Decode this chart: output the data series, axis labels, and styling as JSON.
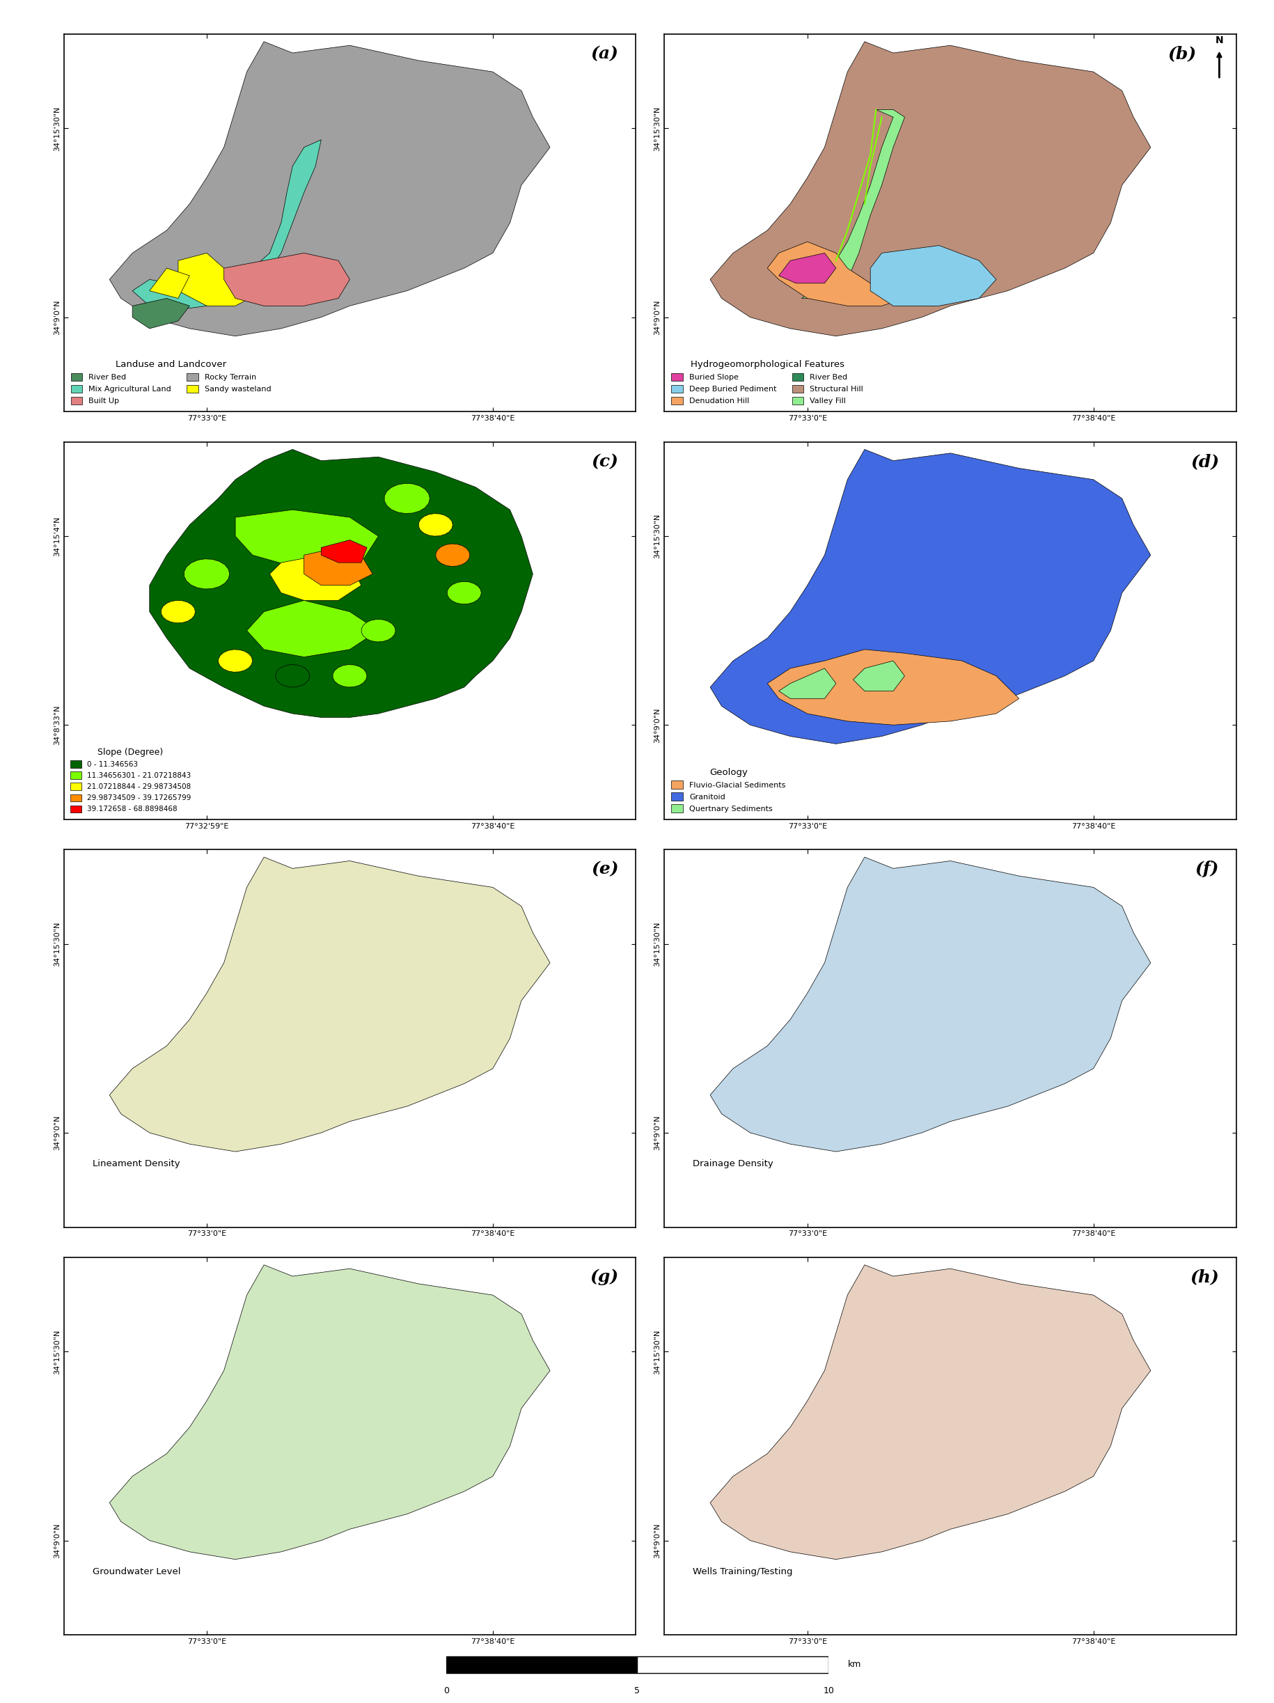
{
  "panels": [
    "(a)",
    "(b)",
    "(c)",
    "(d)",
    "(e)",
    "(f)",
    "(g)",
    "(h)"
  ],
  "figure_bg": "#ffffff",
  "panel_bg": "#ffffff",
  "border_color": "#000000",
  "panel_a": {
    "label": "(a)",
    "title": "Landuse and Landcover",
    "x_ticks": [
      "77°33'0\"E",
      "77°38'40\"E"
    ],
    "y_ticks": [
      "34°9'0\"N",
      "34°15'30\"N"
    ],
    "legend_title": "Landuse and Landcover",
    "legend_items": [
      {
        "label": "River Bed",
        "color": "#4a8c5c"
      },
      {
        "label": "Mix Agricultural Land",
        "color": "#5fd3b5"
      },
      {
        "label": "Built Up",
        "color": "#e08080"
      },
      {
        "label": "Rocky Terrain",
        "color": "#a0a0a0"
      },
      {
        "label": "Sandy wasteland",
        "color": "#ffff00"
      }
    ],
    "map_colors": {
      "background": "#a0a0a0",
      "river": "#5fd3b5",
      "built_up": "#e08080",
      "sandy": "#ffff00",
      "river_bed": "#4a8c5c"
    }
  },
  "panel_b": {
    "label": "(b)",
    "title": "Hydrogeomorphological Features",
    "x_ticks": [
      "77°33'0\"E",
      "77°38'40\"E"
    ],
    "y_ticks": [
      "34°9'0\"N",
      "34°15'30\"N"
    ],
    "legend_title": "Hydrogeomorphological Features",
    "legend_items": [
      {
        "label": "Buried Slope",
        "color": "#e040a0"
      },
      {
        "label": "Deep Buried Pediment",
        "color": "#87ceeb"
      },
      {
        "label": "Denudation Hill",
        "color": "#f4a460"
      },
      {
        "label": "River Bed",
        "color": "#2e8b57"
      },
      {
        "label": "Structural Hill",
        "color": "#bc8f7a"
      },
      {
        "label": "Valley Fill",
        "color": "#90ee90"
      }
    ],
    "map_colors": {
      "background": "#bc8f7a",
      "valley_fill": "#90ee90",
      "denudation": "#f4a460",
      "deep_buried": "#87ceeb",
      "buried_slope": "#e040a0"
    }
  },
  "panel_c": {
    "label": "(c)",
    "title": "Slope (Degree)",
    "x_ticks": [
      "77°32'59\"E",
      "77°38'40\"E"
    ],
    "y_ticks": [
      "34°8'33\"N",
      "34°15'4\"N"
    ],
    "legend_title": "Slope (Degree)",
    "legend_items": [
      {
        "label": "0 - 11.346563",
        "color": "#006400"
      },
      {
        "label": "11.34656301 - 21.07218843",
        "color": "#7cfc00"
      },
      {
        "label": "21.07218844 - 29.98734508",
        "color": "#ffff00"
      },
      {
        "label": "29.98734509 - 39.17265799",
        "color": "#ff8c00"
      },
      {
        "label": "39.172658 - 68.8898468",
        "color": "#ff0000"
      }
    ]
  },
  "panel_d": {
    "label": "(d)",
    "title": "Geology",
    "x_ticks": [
      "77°33'0\"E",
      "77°38'40\"E"
    ],
    "y_ticks": [
      "34°9'0\"N",
      "34°15'30\"N"
    ],
    "legend_title": "Geology",
    "legend_items": [
      {
        "label": "Fluvio-Glacial Sediments",
        "color": "#f4a460"
      },
      {
        "label": "Granitoid",
        "color": "#4169e1"
      },
      {
        "label": "Quertnary Sediments",
        "color": "#90ee90"
      }
    ],
    "map_colors": {
      "granitoid": "#4169e1",
      "fluvio": "#f4a460",
      "quarternary": "#90ee90"
    }
  },
  "scale_bar": {
    "label": "km",
    "ticks": [
      0,
      5,
      10
    ]
  },
  "north_arrow_pos": "top_right"
}
